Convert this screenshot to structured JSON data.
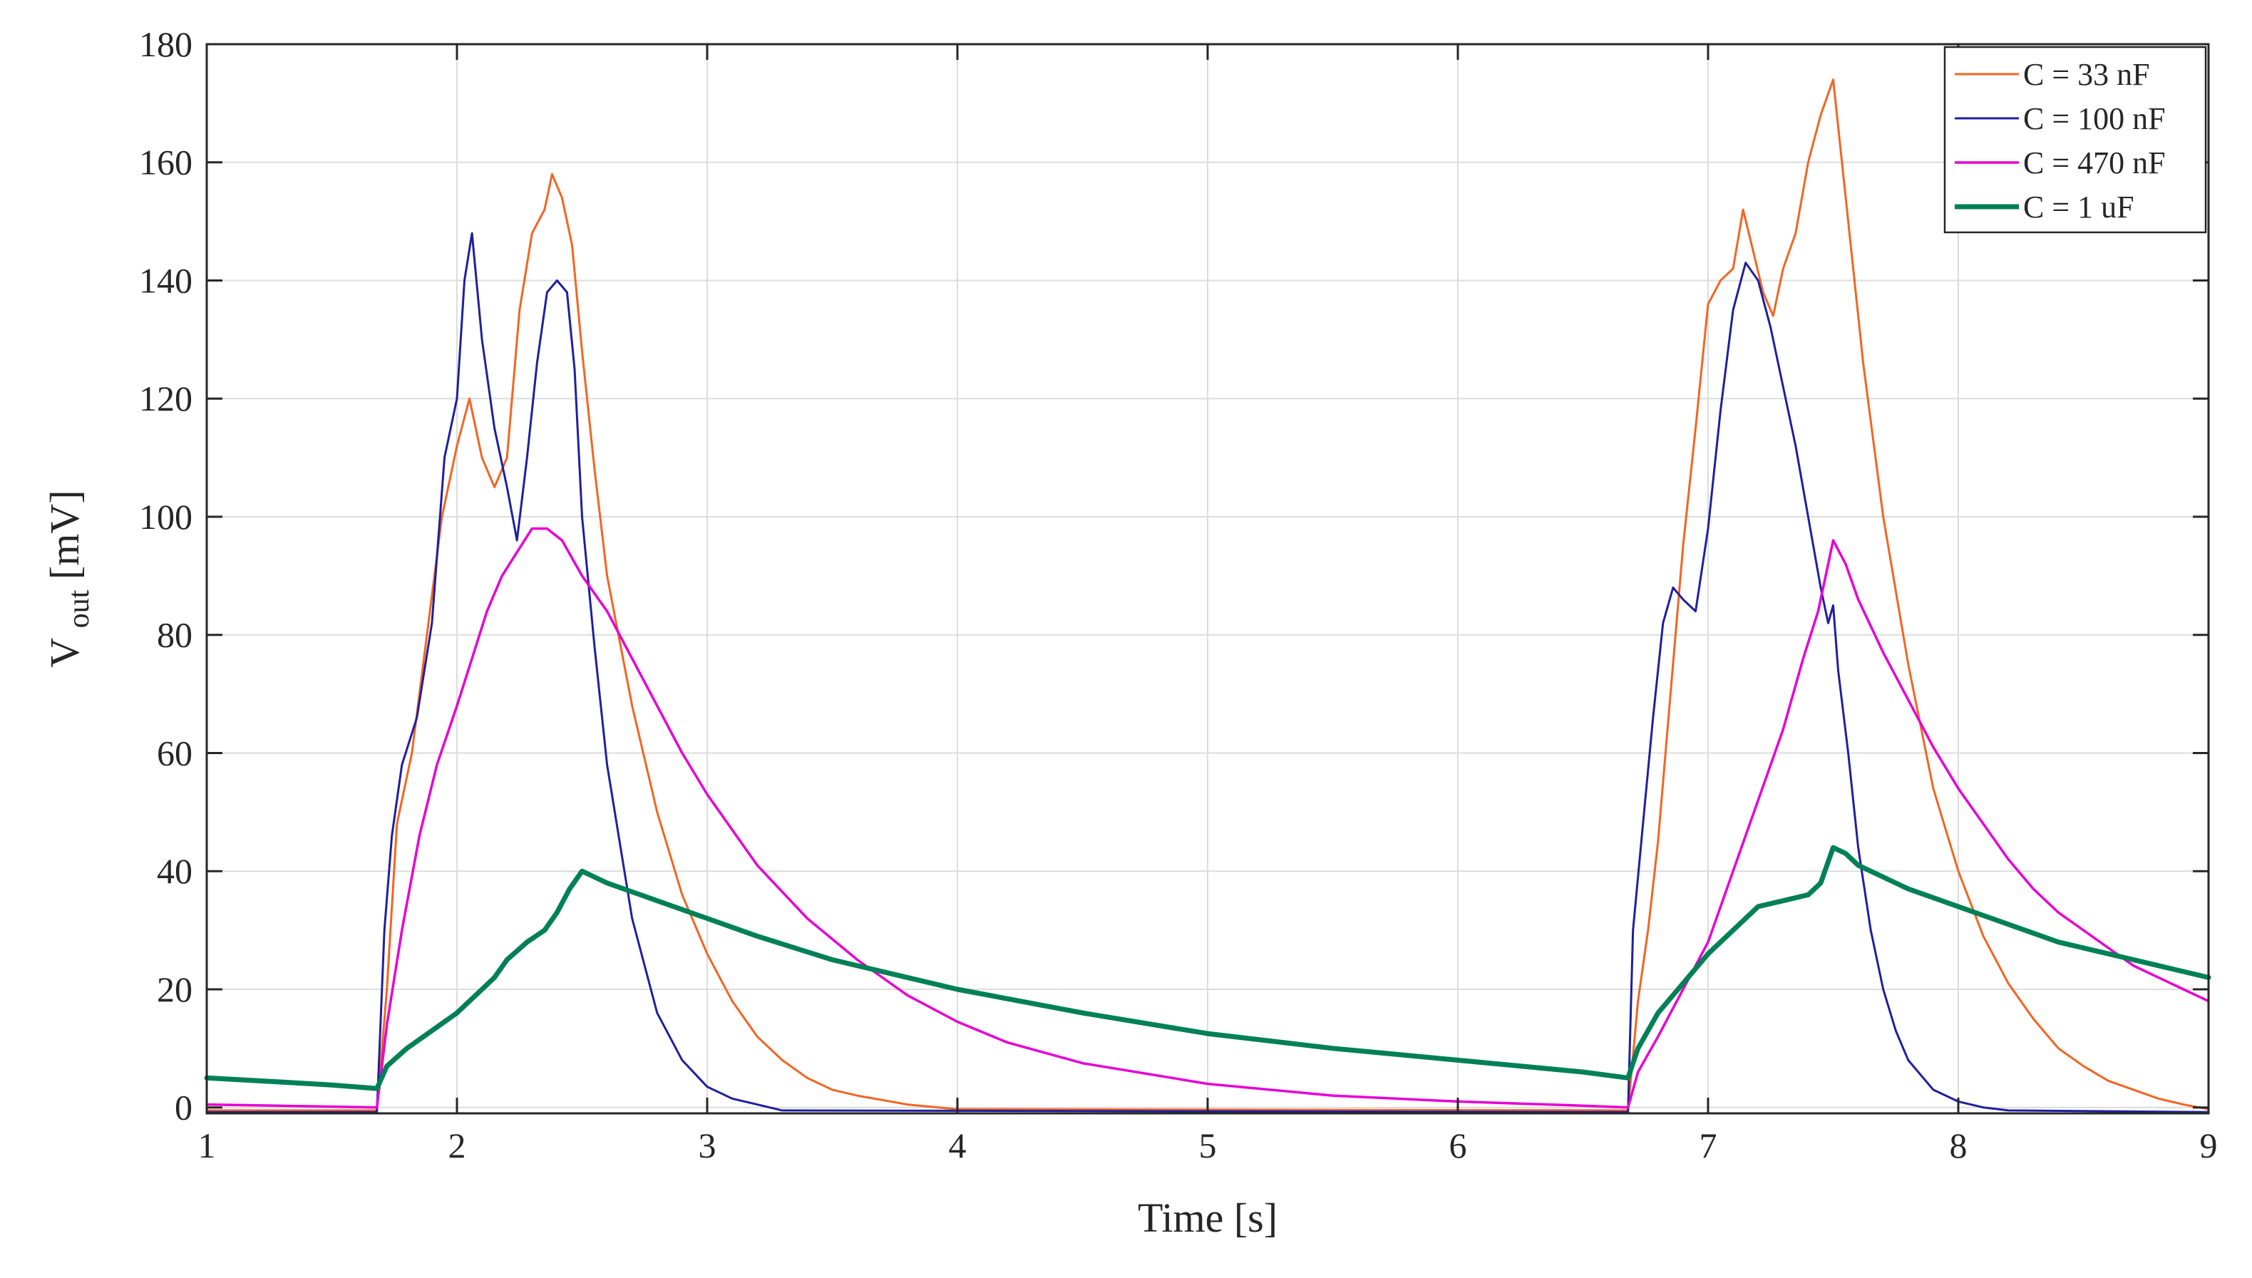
{
  "chart_data": {
    "type": "line",
    "title": "",
    "xlabel": "Time [s]",
    "ylabel_main": "V",
    "ylabel_sub": "out",
    "ylabel_unit": " [mV]",
    "xlim": [
      1,
      9
    ],
    "ylim": [
      -1,
      180
    ],
    "xticks": [
      1,
      2,
      3,
      4,
      5,
      6,
      7,
      8,
      9
    ],
    "yticks": [
      0,
      20,
      40,
      60,
      80,
      100,
      120,
      140,
      160,
      180
    ],
    "xtick_labels": [
      "1",
      "2",
      "3",
      "4",
      "5",
      "6",
      "7",
      "8",
      "9"
    ],
    "ytick_labels": [
      "0",
      "20",
      "40",
      "60",
      "80",
      "100",
      "120",
      "140",
      "160",
      "180"
    ],
    "grid": true,
    "legend_position": "top-right",
    "series": [
      {
        "name": "C = 33 nF",
        "color": "#f26522",
        "points": [
          [
            1.0,
            -0.5
          ],
          [
            1.68,
            -0.5
          ],
          [
            1.72,
            20
          ],
          [
            1.76,
            48
          ],
          [
            1.82,
            60
          ],
          [
            1.88,
            80
          ],
          [
            1.94,
            100
          ],
          [
            2.0,
            112
          ],
          [
            2.05,
            120
          ],
          [
            2.1,
            110
          ],
          [
            2.15,
            105
          ],
          [
            2.2,
            110
          ],
          [
            2.25,
            135
          ],
          [
            2.3,
            148
          ],
          [
            2.35,
            152
          ],
          [
            2.38,
            158
          ],
          [
            2.42,
            154
          ],
          [
            2.46,
            146
          ],
          [
            2.5,
            128
          ],
          [
            2.55,
            108
          ],
          [
            2.6,
            90
          ],
          [
            2.7,
            68
          ],
          [
            2.8,
            50
          ],
          [
            2.9,
            36
          ],
          [
            3.0,
            26
          ],
          [
            3.1,
            18
          ],
          [
            3.2,
            12
          ],
          [
            3.3,
            8
          ],
          [
            3.4,
            5
          ],
          [
            3.5,
            3
          ],
          [
            3.6,
            2
          ],
          [
            3.8,
            0.5
          ],
          [
            4.0,
            -0.3
          ],
          [
            6.68,
            -0.5
          ],
          [
            6.72,
            18
          ],
          [
            6.76,
            30
          ],
          [
            6.8,
            45
          ],
          [
            6.85,
            70
          ],
          [
            6.9,
            95
          ],
          [
            6.95,
            115
          ],
          [
            7.0,
            136
          ],
          [
            7.05,
            140
          ],
          [
            7.1,
            142
          ],
          [
            7.14,
            152
          ],
          [
            7.18,
            145
          ],
          [
            7.22,
            138
          ],
          [
            7.26,
            134
          ],
          [
            7.3,
            142
          ],
          [
            7.35,
            148
          ],
          [
            7.4,
            160
          ],
          [
            7.45,
            168
          ],
          [
            7.5,
            174
          ],
          [
            7.56,
            150
          ],
          [
            7.62,
            126
          ],
          [
            7.7,
            100
          ],
          [
            7.8,
            75
          ],
          [
            7.9,
            54
          ],
          [
            8.0,
            40
          ],
          [
            8.1,
            29
          ],
          [
            8.2,
            21
          ],
          [
            8.3,
            15
          ],
          [
            8.4,
            10
          ],
          [
            8.5,
            7
          ],
          [
            8.6,
            4.5
          ],
          [
            8.7,
            3
          ],
          [
            8.8,
            1.5
          ],
          [
            8.9,
            0.5
          ],
          [
            9.0,
            -0.3
          ]
        ]
      },
      {
        "name": "C = 100 nF",
        "color": "#1f1f9e",
        "points": [
          [
            1.0,
            -0.8
          ],
          [
            1.68,
            -0.8
          ],
          [
            1.71,
            30
          ],
          [
            1.74,
            46
          ],
          [
            1.78,
            58
          ],
          [
            1.84,
            66
          ],
          [
            1.9,
            82
          ],
          [
            1.95,
            110
          ],
          [
            2.0,
            120
          ],
          [
            2.03,
            140
          ],
          [
            2.06,
            148
          ],
          [
            2.1,
            130
          ],
          [
            2.15,
            115
          ],
          [
            2.2,
            105
          ],
          [
            2.24,
            96
          ],
          [
            2.28,
            110
          ],
          [
            2.32,
            126
          ],
          [
            2.36,
            138
          ],
          [
            2.4,
            140
          ],
          [
            2.44,
            138
          ],
          [
            2.47,
            125
          ],
          [
            2.5,
            100
          ],
          [
            2.55,
            78
          ],
          [
            2.6,
            58
          ],
          [
            2.7,
            32
          ],
          [
            2.8,
            16
          ],
          [
            2.9,
            8
          ],
          [
            3.0,
            3.5
          ],
          [
            3.1,
            1.5
          ],
          [
            3.2,
            0.5
          ],
          [
            3.3,
            -0.5
          ],
          [
            6.68,
            -0.8
          ],
          [
            6.7,
            30
          ],
          [
            6.74,
            48
          ],
          [
            6.78,
            66
          ],
          [
            6.82,
            82
          ],
          [
            6.86,
            88
          ],
          [
            6.9,
            86
          ],
          [
            6.95,
            84
          ],
          [
            7.0,
            98
          ],
          [
            7.05,
            118
          ],
          [
            7.1,
            135
          ],
          [
            7.15,
            143
          ],
          [
            7.2,
            140
          ],
          [
            7.25,
            132
          ],
          [
            7.3,
            122
          ],
          [
            7.35,
            112
          ],
          [
            7.4,
            100
          ],
          [
            7.45,
            88
          ],
          [
            7.48,
            82
          ],
          [
            7.5,
            85
          ],
          [
            7.52,
            74
          ],
          [
            7.56,
            60
          ],
          [
            7.6,
            44
          ],
          [
            7.65,
            30
          ],
          [
            7.7,
            20
          ],
          [
            7.75,
            13
          ],
          [
            7.8,
            8
          ],
          [
            7.9,
            3
          ],
          [
            8.0,
            1
          ],
          [
            8.1,
            0
          ],
          [
            8.2,
            -0.5
          ],
          [
            9.0,
            -0.8
          ]
        ]
      },
      {
        "name": "C = 470 nF",
        "color": "#e600d4",
        "points": [
          [
            1.0,
            0.5
          ],
          [
            1.68,
            0
          ],
          [
            1.72,
            14
          ],
          [
            1.78,
            30
          ],
          [
            1.85,
            46
          ],
          [
            1.92,
            58
          ],
          [
            2.0,
            68
          ],
          [
            2.06,
            76
          ],
          [
            2.12,
            84
          ],
          [
            2.18,
            90
          ],
          [
            2.24,
            94
          ],
          [
            2.3,
            98
          ],
          [
            2.36,
            98
          ],
          [
            2.42,
            96
          ],
          [
            2.5,
            90
          ],
          [
            2.6,
            84
          ],
          [
            2.7,
            76
          ],
          [
            2.8,
            68
          ],
          [
            2.9,
            60
          ],
          [
            3.0,
            53
          ],
          [
            3.2,
            41
          ],
          [
            3.4,
            32
          ],
          [
            3.6,
            25
          ],
          [
            3.8,
            19
          ],
          [
            4.0,
            14.5
          ],
          [
            4.2,
            11
          ],
          [
            4.5,
            7.5
          ],
          [
            5.0,
            4
          ],
          [
            5.5,
            2
          ],
          [
            6.0,
            1
          ],
          [
            6.5,
            0.3
          ],
          [
            6.68,
            0
          ],
          [
            6.72,
            6
          ],
          [
            6.8,
            12
          ],
          [
            6.9,
            20
          ],
          [
            7.0,
            28
          ],
          [
            7.1,
            40
          ],
          [
            7.2,
            52
          ],
          [
            7.3,
            64
          ],
          [
            7.38,
            76
          ],
          [
            7.44,
            84
          ],
          [
            7.48,
            92
          ],
          [
            7.5,
            96
          ],
          [
            7.55,
            92
          ],
          [
            7.6,
            86
          ],
          [
            7.7,
            77
          ],
          [
            7.8,
            69
          ],
          [
            7.9,
            61
          ],
          [
            8.0,
            54
          ],
          [
            8.1,
            48
          ],
          [
            8.2,
            42
          ],
          [
            8.3,
            37
          ],
          [
            8.4,
            33
          ],
          [
            8.5,
            30
          ],
          [
            8.6,
            27
          ],
          [
            8.7,
            24
          ],
          [
            8.8,
            22
          ],
          [
            8.9,
            20
          ],
          [
            9.0,
            18
          ]
        ]
      },
      {
        "name": "C = 1 uF",
        "color": "#008056",
        "points": [
          [
            1.0,
            5
          ],
          [
            1.3,
            4.3
          ],
          [
            1.5,
            3.8
          ],
          [
            1.68,
            3.2
          ],
          [
            1.72,
            7
          ],
          [
            1.8,
            10
          ],
          [
            1.9,
            13
          ],
          [
            2.0,
            16
          ],
          [
            2.1,
            20
          ],
          [
            2.15,
            22
          ],
          [
            2.2,
            25
          ],
          [
            2.28,
            28
          ],
          [
            2.35,
            30
          ],
          [
            2.4,
            33
          ],
          [
            2.45,
            37
          ],
          [
            2.5,
            40
          ],
          [
            2.55,
            39
          ],
          [
            2.6,
            38
          ],
          [
            2.8,
            35
          ],
          [
            3.0,
            32
          ],
          [
            3.2,
            29
          ],
          [
            3.5,
            25
          ],
          [
            4.0,
            20
          ],
          [
            4.5,
            16
          ],
          [
            5.0,
            12.5
          ],
          [
            5.5,
            10
          ],
          [
            6.0,
            8
          ],
          [
            6.5,
            6
          ],
          [
            6.68,
            5
          ],
          [
            6.72,
            10
          ],
          [
            6.8,
            16
          ],
          [
            6.9,
            21
          ],
          [
            7.0,
            26
          ],
          [
            7.1,
            30
          ],
          [
            7.2,
            34
          ],
          [
            7.3,
            35
          ],
          [
            7.4,
            36
          ],
          [
            7.45,
            38
          ],
          [
            7.5,
            44
          ],
          [
            7.55,
            43
          ],
          [
            7.6,
            41
          ],
          [
            7.7,
            39
          ],
          [
            7.8,
            37
          ],
          [
            8.0,
            34
          ],
          [
            8.2,
            31
          ],
          [
            8.4,
            28
          ],
          [
            8.6,
            26
          ],
          [
            8.8,
            24
          ],
          [
            9.0,
            22
          ]
        ]
      }
    ]
  }
}
